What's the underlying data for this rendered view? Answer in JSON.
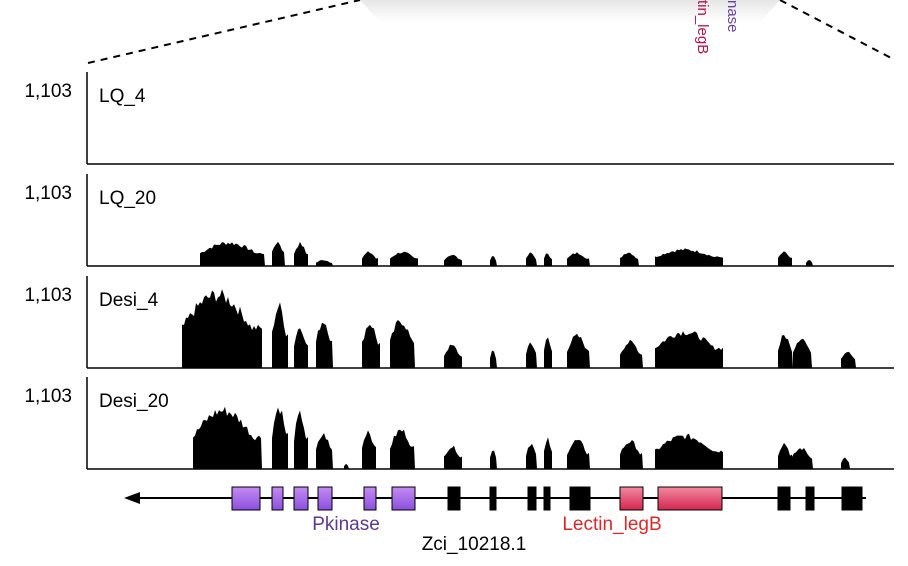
{
  "chart_data": {
    "type": "area",
    "y_max_label": "1,103",
    "ylim": [
      0,
      1103
    ],
    "tracks": [
      {
        "name": "LQ_4",
        "blocks": []
      },
      {
        "name": "LQ_20",
        "blocks": [
          [
            200,
            265,
            0.27
          ],
          [
            272,
            285,
            0.28
          ],
          [
            294,
            308,
            0.26
          ],
          [
            316,
            333,
            0.07
          ],
          [
            362,
            378,
            0.16
          ],
          [
            390,
            418,
            0.16
          ],
          [
            444,
            462,
            0.13
          ],
          [
            490,
            497,
            0.12
          ],
          [
            526,
            537,
            0.15
          ],
          [
            544,
            552,
            0.15
          ],
          [
            567,
            590,
            0.15
          ],
          [
            620,
            639,
            0.16
          ],
          [
            655,
            723,
            0.19
          ],
          [
            778,
            792,
            0.16
          ],
          [
            806,
            813,
            0.07
          ]
        ]
      },
      {
        "name": "Desi_4",
        "blocks": [
          [
            182,
            262,
            0.85
          ],
          [
            272,
            288,
            0.72
          ],
          [
            294,
            308,
            0.48
          ],
          [
            316,
            333,
            0.55
          ],
          [
            362,
            380,
            0.52
          ],
          [
            390,
            415,
            0.55
          ],
          [
            444,
            462,
            0.26
          ],
          [
            490,
            497,
            0.2
          ],
          [
            526,
            537,
            0.3
          ],
          [
            544,
            552,
            0.36
          ],
          [
            567,
            590,
            0.37
          ],
          [
            620,
            643,
            0.3
          ],
          [
            655,
            723,
            0.42
          ],
          [
            778,
            793,
            0.38
          ],
          [
            793,
            812,
            0.35
          ],
          [
            841,
            856,
            0.2
          ]
        ]
      },
      {
        "name": "Desi_20",
        "blocks": [
          [
            193,
            262,
            0.68
          ],
          [
            272,
            288,
            0.72
          ],
          [
            294,
            308,
            0.63
          ],
          [
            316,
            333,
            0.4
          ],
          [
            344,
            349,
            0.06
          ],
          [
            362,
            376,
            0.45
          ],
          [
            390,
            415,
            0.45
          ],
          [
            444,
            462,
            0.26
          ],
          [
            490,
            497,
            0.24
          ],
          [
            526,
            537,
            0.3
          ],
          [
            544,
            552,
            0.35
          ],
          [
            567,
            590,
            0.33
          ],
          [
            620,
            643,
            0.32
          ],
          [
            655,
            723,
            0.38
          ],
          [
            778,
            792,
            0.3
          ],
          [
            792,
            813,
            0.24
          ],
          [
            841,
            850,
            0.13
          ]
        ]
      }
    ],
    "gene": {
      "name": "Zci_10218.1",
      "direction": "reverse",
      "exons": [
        {
          "x0": 232,
          "x1": 260,
          "domain": "Pkinase"
        },
        {
          "x0": 272,
          "x1": 283,
          "domain": "Pkinase"
        },
        {
          "x0": 294,
          "x1": 308,
          "domain": "Pkinase"
        },
        {
          "x0": 318,
          "x1": 332,
          "domain": "Pkinase"
        },
        {
          "x0": 364,
          "x1": 376,
          "domain": "Pkinase"
        },
        {
          "x0": 392,
          "x1": 415,
          "domain": "Pkinase"
        },
        {
          "x0": 448,
          "x1": 460
        },
        {
          "x0": 490,
          "x1": 496
        },
        {
          "x0": 528,
          "x1": 536
        },
        {
          "x0": 544,
          "x1": 550
        },
        {
          "x0": 570,
          "x1": 590
        },
        {
          "x0": 620,
          "x1": 643,
          "domain": "Lectin_legB"
        },
        {
          "x0": 658,
          "x1": 722,
          "domain": "Lectin_legB"
        },
        {
          "x0": 778,
          "x1": 790
        },
        {
          "x0": 806,
          "x1": 814
        },
        {
          "x0": 842,
          "x1": 862
        }
      ],
      "domains": [
        {
          "name": "Pkinase",
          "color": "#5b3a8c"
        },
        {
          "name": "Lectin_legB",
          "color": "#d62a2a"
        }
      ]
    },
    "top_fragments": {
      "lectin": "tin_legB",
      "kinase": "nase",
      "lectin_color": "#b3174a",
      "kinase_color": "#6b3fa0"
    },
    "colors": {
      "coverage": "#000000",
      "kinase_exon_top": "#c38cf0",
      "kinase_exon_bottom": "#8b4fe0",
      "lectin_exon_top": "#f08aa0",
      "lectin_exon_bottom": "#d6264f"
    }
  }
}
